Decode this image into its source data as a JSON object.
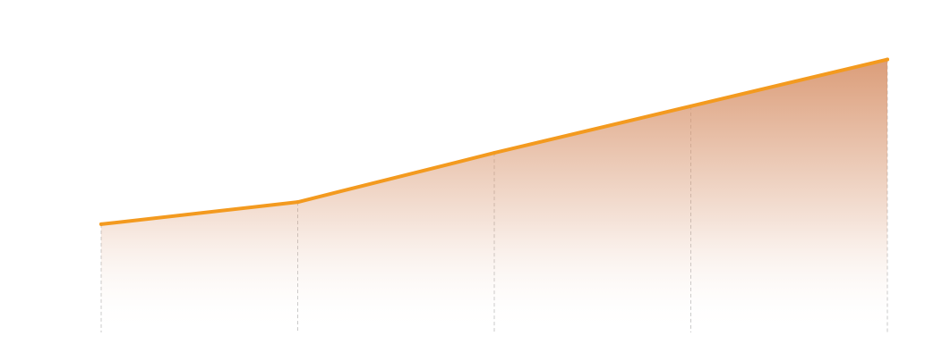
{
  "chart_data": {
    "type": "area",
    "x": [
      0,
      1,
      2,
      3,
      4
    ],
    "values": [
      44,
      53,
      73,
      92,
      111
    ],
    "ylim": [
      0,
      125
    ],
    "grid": "vertical-dashed",
    "legend": "none",
    "colors": {
      "line": "#f39a1f",
      "fill_top": "#d7926a",
      "fill_bottom": "#ffffff",
      "grid": "#c8c8c8"
    }
  }
}
